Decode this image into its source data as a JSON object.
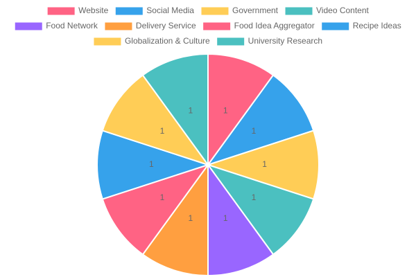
{
  "chart_data": {
    "type": "pie",
    "categories": [
      "Website",
      "Social Media",
      "Government",
      "Video Content",
      "Food Network",
      "Delivery Service",
      "Food Idea Aggregator",
      "Recipe Ideas",
      "Globalization & Culture",
      "University Research"
    ],
    "values": [
      1,
      1,
      1,
      1,
      1,
      1,
      1,
      1,
      1,
      1
    ],
    "colors": [
      "#ff6384",
      "#36a2eb",
      "#ffcd56",
      "#4bc0c0",
      "#9966ff",
      "#ff9f40",
      "#ff6384",
      "#36a2eb",
      "#ffcd56",
      "#4bc0c0"
    ],
    "legend": "top"
  }
}
